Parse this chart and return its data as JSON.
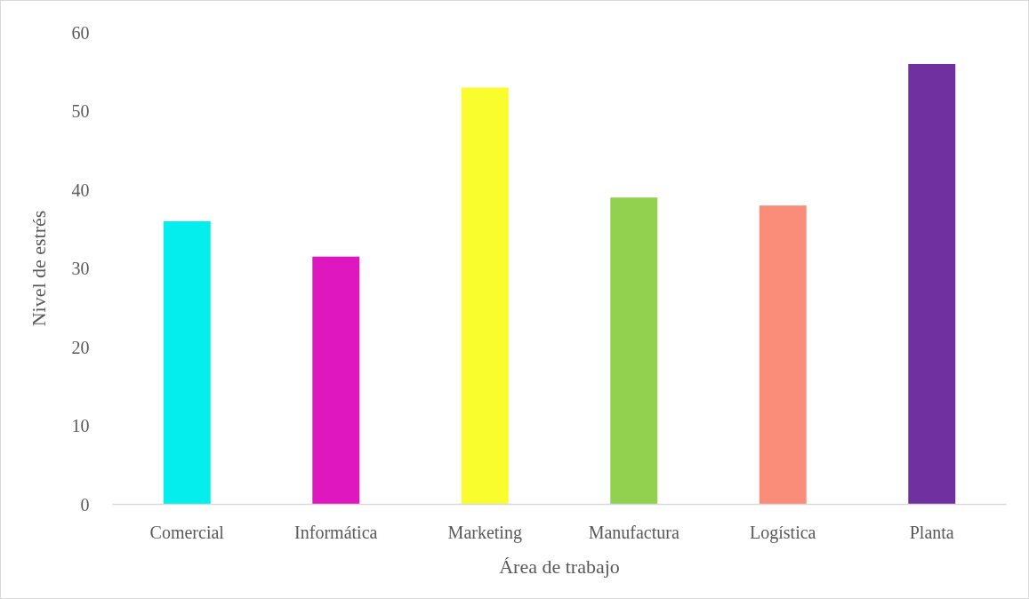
{
  "chart_data": {
    "type": "bar",
    "xlabel": "Área de trabajo",
    "ylabel": "Nivel de estrés",
    "categories": [
      "Comercial",
      "Informática",
      "Marketing",
      "Manufactura",
      "Logística",
      "Planta"
    ],
    "values": [
      36,
      31.5,
      53,
      39,
      38,
      56
    ],
    "colors": [
      "#04eeee",
      "#df17bf",
      "#f9fd2e",
      "#92d050",
      "#fa8c7a",
      "#7030a0"
    ],
    "ylim": [
      0,
      60
    ],
    "yticks": [
      0,
      10,
      20,
      30,
      40,
      50,
      60
    ]
  }
}
